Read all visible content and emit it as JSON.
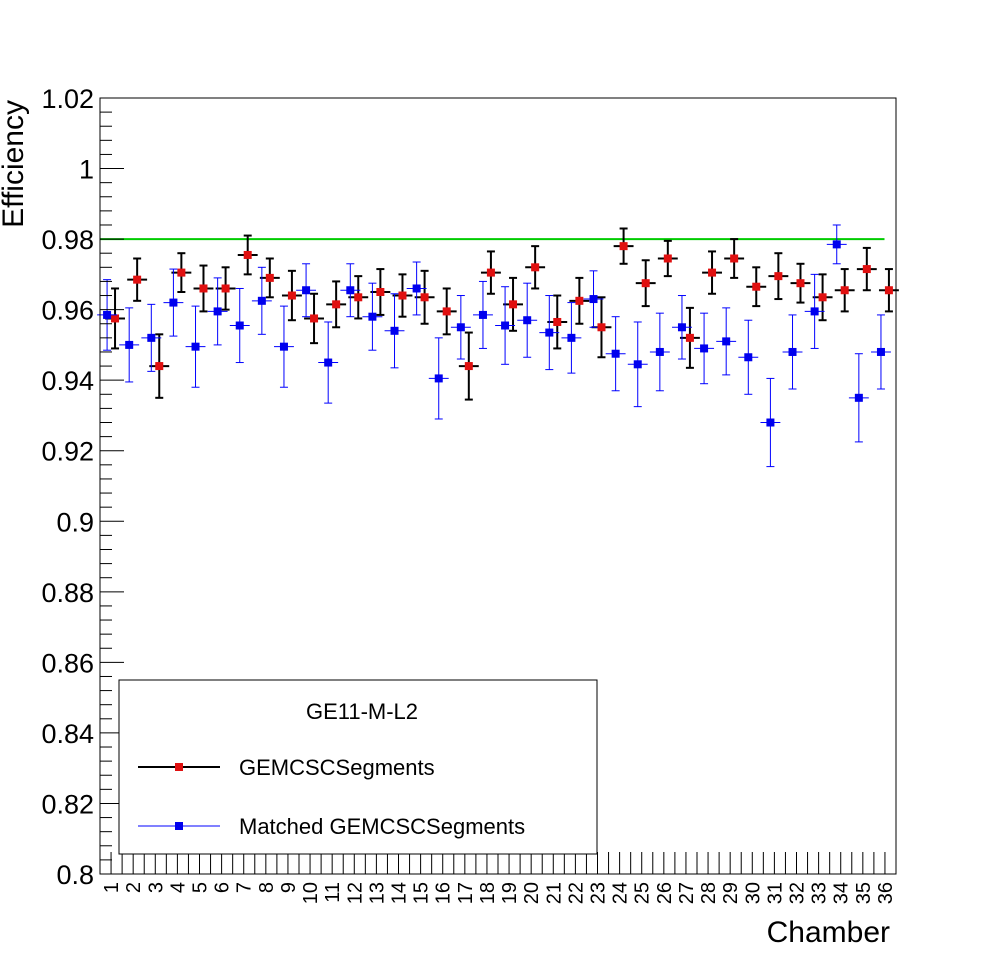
{
  "chart_data": {
    "type": "scatter",
    "ylabel": "Efficiency",
    "xlabel": "Chamber",
    "ylim": [
      0.8,
      1.02
    ],
    "xlim": [
      0.5,
      36.5
    ],
    "grid": false,
    "yticks": [
      0.8,
      0.82,
      0.84,
      0.86,
      0.88,
      0.9,
      0.92,
      0.94,
      0.96,
      0.98,
      1,
      1.02
    ],
    "ytick_labels": [
      "0.8",
      "0.82",
      "0.84",
      "0.86",
      "0.88",
      "0.9",
      "0.92",
      "0.94",
      "0.96",
      "0.98",
      "1",
      "1.02"
    ],
    "categories": [
      "1",
      "2",
      "3",
      "4",
      "5",
      "6",
      "7",
      "8",
      "9",
      "10",
      "11",
      "12",
      "13",
      "14",
      "15",
      "16",
      "17",
      "18",
      "19",
      "20",
      "21",
      "22",
      "23",
      "24",
      "25",
      "26",
      "27",
      "28",
      "29",
      "30",
      "31",
      "32",
      "33",
      "34",
      "35",
      "36"
    ],
    "reference_line": {
      "y": 0.98,
      "color": "#00cc00"
    },
    "legend": {
      "title": "GE11-M-L2",
      "placement": "bottom-left",
      "entries": [
        "GEMCSCSegments",
        "Matched GEMCSCSegments"
      ]
    },
    "series": [
      {
        "name": "GEMCSCSegments",
        "line_color": "#000000",
        "marker_color": "#e01010",
        "values": [
          0.9575,
          0.9685,
          0.944,
          0.9705,
          0.966,
          0.966,
          0.9755,
          0.969,
          0.964,
          0.9575,
          0.9615,
          0.9635,
          0.965,
          0.964,
          0.9635,
          0.9595,
          0.944,
          0.9705,
          0.9615,
          0.972,
          0.9565,
          0.9625,
          0.955,
          0.978,
          0.9675,
          0.9745,
          0.952,
          0.9705,
          0.9745,
          0.9665,
          0.9695,
          0.9675,
          0.9635,
          0.9655,
          0.9715,
          0.9655
        ],
        "errors": [
          0.0085,
          0.006,
          0.009,
          0.0055,
          0.0065,
          0.006,
          0.0055,
          0.0055,
          0.007,
          0.007,
          0.0065,
          0.006,
          0.0065,
          0.006,
          0.0075,
          0.0065,
          0.0095,
          0.006,
          0.0075,
          0.006,
          0.0075,
          0.0065,
          0.0085,
          0.005,
          0.0065,
          0.005,
          0.0085,
          0.006,
          0.0055,
          0.0055,
          0.0065,
          0.0055,
          0.0065,
          0.006,
          0.006,
          0.006
        ]
      },
      {
        "name": "Matched GEMCSCSegments",
        "line_color": "#0000ff",
        "marker_color": "#0000ee",
        "values": [
          0.9585,
          0.95,
          0.952,
          0.962,
          0.9495,
          0.9595,
          0.9555,
          0.9625,
          0.9495,
          0.9655,
          0.945,
          0.9655,
          0.958,
          0.954,
          0.966,
          0.9405,
          0.955,
          0.9585,
          0.9555,
          0.957,
          0.9535,
          0.952,
          0.963,
          0.9475,
          0.9445,
          0.948,
          0.955,
          0.949,
          0.951,
          0.9465,
          0.928,
          0.948,
          0.9595,
          0.9785,
          0.935,
          0.948
        ],
        "errors": [
          0.01,
          0.0105,
          0.0095,
          0.0095,
          0.0115,
          0.0095,
          0.0105,
          0.0095,
          0.0115,
          0.0075,
          0.0115,
          0.0075,
          0.0095,
          0.0105,
          0.0075,
          0.0115,
          0.009,
          0.0095,
          0.011,
          0.0105,
          0.0105,
          0.01,
          0.008,
          0.0105,
          0.012,
          0.011,
          0.009,
          0.01,
          0.0095,
          0.0105,
          0.0125,
          0.0105,
          0.0105,
          0.0055,
          0.0125,
          0.0105
        ]
      }
    ]
  }
}
